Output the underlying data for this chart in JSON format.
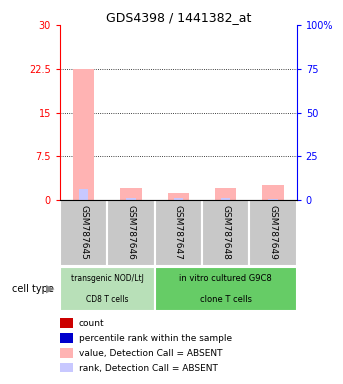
{
  "title": "GDS4398 / 1441382_at",
  "samples": [
    "GSM787645",
    "GSM787646",
    "GSM787647",
    "GSM787648",
    "GSM787649"
  ],
  "value_absent": [
    22.5,
    2.0,
    1.2,
    2.1,
    2.6
  ],
  "rank_absent": [
    6.5,
    1.1,
    1.0,
    1.0,
    0.8
  ],
  "ylim_left": [
    0,
    30
  ],
  "ylim_right": [
    0,
    100
  ],
  "yticks_left": [
    0,
    7.5,
    15,
    22.5,
    30
  ],
  "ytick_labels_left": [
    "0",
    "7.5",
    "15",
    "22.5",
    "30"
  ],
  "yticks_right": [
    0,
    25,
    50,
    75,
    100
  ],
  "ytick_labels_right": [
    "0",
    "25",
    "50",
    "75",
    "100%"
  ],
  "color_value_absent": "#ffb3b3",
  "color_rank_absent": "#c8c8ff",
  "color_count": "#cc0000",
  "color_rank_present": "#0000cc",
  "group1_label1": "transgenic NOD/LtJ",
  "group1_label2": "CD8 T cells",
  "group2_label1": "in vitro cultured G9C8",
  "group2_label2": "clone T cells",
  "group1_samples": [
    0,
    1
  ],
  "group2_samples": [
    2,
    3,
    4
  ],
  "group1_color": "#b8e0b8",
  "group2_color": "#66cc66",
  "bg_color": "#c8c8c8",
  "legend_labels": [
    "count",
    "percentile rank within the sample",
    "value, Detection Call = ABSENT",
    "rank, Detection Call = ABSENT"
  ],
  "legend_colors": [
    "#cc0000",
    "#0000cc",
    "#ffb3b3",
    "#c8c8ff"
  ]
}
